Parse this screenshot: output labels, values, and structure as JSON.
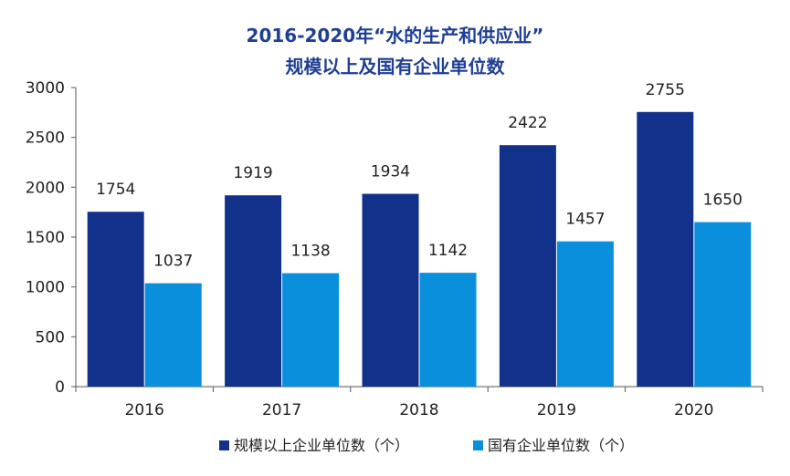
{
  "chart_data": {
    "type": "bar",
    "title": "2016-2020年“水的生产和供应业”",
    "subtitle": "规模以上及国有企业单位数",
    "xlabel": "",
    "ylabel": "",
    "categories": [
      "2016",
      "2017",
      "2018",
      "2019",
      "2020"
    ],
    "series": [
      {
        "name": "规模以上企业单位数（个）",
        "values": [
          1754,
          1919,
          1934,
          2422,
          2755
        ],
        "color": "#12318a"
      },
      {
        "name": "国有企业单位数（个）",
        "values": [
          1037,
          1138,
          1142,
          1457,
          1650
        ],
        "color": "#0a8fdc"
      }
    ],
    "ylim": [
      0,
      3000
    ],
    "yticks": [
      0,
      500,
      1000,
      1500,
      2000,
      2500,
      3000
    ],
    "grid": false,
    "legend": "bottom-center",
    "data_labels": true
  }
}
